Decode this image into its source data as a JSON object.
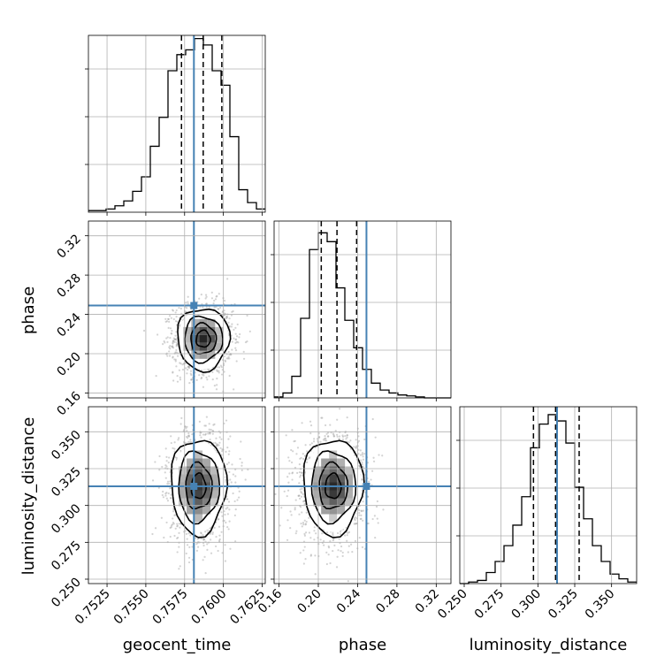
{
  "chart_data": {
    "type": "corner",
    "parameters": [
      "geocent_time",
      "phase",
      "luminosity_distance"
    ],
    "axis_labels": {
      "geocent_time": "geocent_time",
      "phase": "phase",
      "luminosity_distance": "luminosity_distance"
    },
    "ranges": {
      "geocent_time": [
        0.7513,
        0.7627
      ],
      "phase": [
        0.155,
        0.335
      ],
      "luminosity_distance": [
        0.247,
        0.367
      ]
    },
    "ticks": {
      "geocent_time": [
        "0.7525",
        "0.7550",
        "0.7575",
        "0.7600",
        "0.7625"
      ],
      "phase": [
        "0.16",
        "0.20",
        "0.24",
        "0.28",
        "0.32"
      ],
      "luminosity_distance": [
        "0.250",
        "0.275",
        "0.300",
        "0.325",
        "0.350"
      ]
    },
    "truths": {
      "geocent_time": 0.7581,
      "phase": 0.249,
      "luminosity_distance": 0.313
    },
    "quantiles": {
      "geocent_time": [
        0.7573,
        0.7587,
        0.7599
      ],
      "phase": [
        0.203,
        0.219,
        0.239
      ],
      "luminosity_distance": [
        0.297,
        0.312,
        0.328
      ]
    },
    "marginals": {
      "geocent_time": {
        "edges": [
          0.7513,
          0.75187,
          0.75244,
          0.75301,
          0.75358,
          0.75415,
          0.75472,
          0.75529,
          0.75586,
          0.75643,
          0.757,
          0.75757,
          0.75814,
          0.75871,
          0.75928,
          0.75985,
          0.76042,
          0.76099,
          0.76156,
          0.76213,
          0.7627
        ],
        "counts": [
          1,
          1,
          2,
          4,
          7,
          13,
          22,
          41,
          59,
          88,
          98,
          101,
          108,
          104,
          88,
          79,
          47,
          14,
          6,
          2
        ],
        "ymax": 110
      },
      "phase": {
        "edges": [
          0.155,
          0.164,
          0.173,
          0.182,
          0.191,
          0.2,
          0.209,
          0.218,
          0.227,
          0.236,
          0.245,
          0.254,
          0.263,
          0.272,
          0.281,
          0.29,
          0.299,
          0.308,
          0.317,
          0.326,
          0.335
        ],
        "counts": [
          1,
          5,
          22,
          81,
          151,
          168,
          159,
          112,
          79,
          51,
          29,
          15,
          8,
          5,
          3,
          2,
          1,
          0,
          0,
          0
        ],
        "ymax": 180
      },
      "luminosity_distance": {
        "edges": [
          0.247,
          0.253,
          0.259,
          0.265,
          0.271,
          0.277,
          0.283,
          0.289,
          0.295,
          0.301,
          0.307,
          0.313,
          0.319,
          0.325,
          0.331,
          0.337,
          0.343,
          0.349,
          0.355,
          0.361,
          0.367
        ],
        "counts": [
          0,
          1,
          2,
          7,
          14,
          24,
          37,
          55,
          86,
          101,
          107,
          103,
          89,
          61,
          41,
          24,
          14,
          6,
          3,
          1
        ],
        "ymax": 112
      }
    },
    "joint": [
      {
        "x": "geocent_time",
        "y": "phase",
        "center": [
          0.7587,
          0.215
        ],
        "spread": [
          0.00082,
          0.0155
        ],
        "contour_radii": [
          0.55,
          1.0,
          1.5,
          2.05
        ],
        "samples": 1500
      },
      {
        "x": "geocent_time",
        "y": "luminosity_distance",
        "center": [
          0.7584,
          0.313
        ],
        "spread": [
          0.00085,
          0.0155
        ],
        "contour_radii": [
          0.55,
          1.0,
          1.55,
          2.1
        ],
        "samples": 1500
      },
      {
        "x": "phase",
        "y": "luminosity_distance",
        "center": [
          0.215,
          0.313
        ],
        "spread": [
          0.0145,
          0.0155
        ],
        "contour_radii": [
          0.55,
          1.0,
          1.55,
          2.1
        ],
        "samples": 1500
      }
    ],
    "grid": true,
    "truth_color": "#4682b4",
    "line_color": "#000000",
    "sample_color": "#9e9e9e"
  }
}
